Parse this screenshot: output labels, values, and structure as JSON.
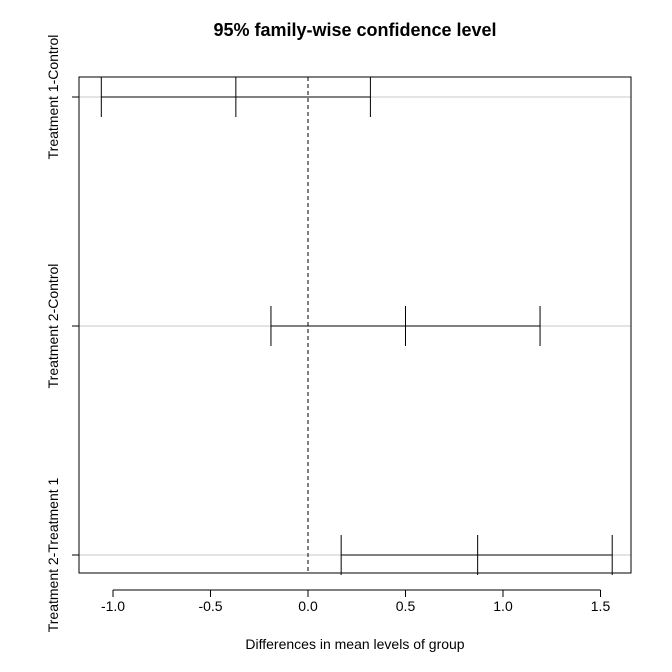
{
  "chart_data": {
    "type": "interval",
    "title": "95% family-wise confidence level",
    "xlabel": "Differences in mean levels of group",
    "ylabel": "",
    "xlim": [
      -1.1,
      1.6
    ],
    "xticks": [
      "-1.0",
      "-0.5",
      "0.0",
      "0.5",
      "1.0",
      "1.5"
    ],
    "reference_line": 0,
    "grid": "horizontal lines at each comparison",
    "comparisons": [
      {
        "label": "Treatment 1-Control",
        "lwr": -1.06,
        "diff": -0.37,
        "upr": 0.32
      },
      {
        "label": "Treatment 2-Control",
        "lwr": -0.19,
        "diff": 0.5,
        "upr": 1.19
      },
      {
        "label": "Treatment 2-Treatment 1",
        "lwr": 0.17,
        "diff": 0.87,
        "upr": 1.56
      }
    ]
  }
}
